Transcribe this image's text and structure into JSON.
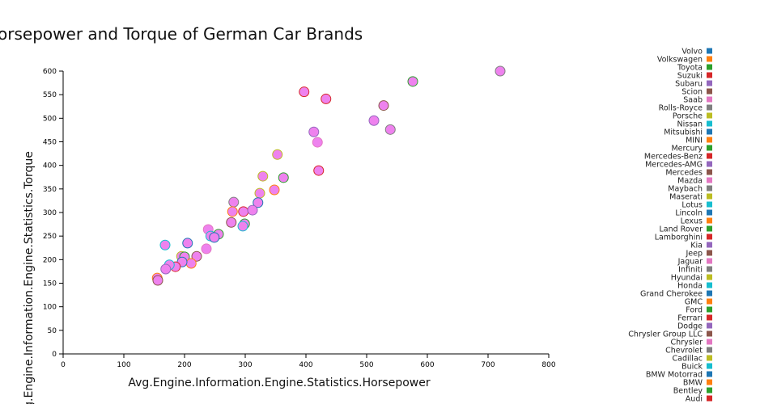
{
  "chart_data": {
    "type": "scatter",
    "title": "Horsepower and Torque of German Car Brands",
    "xlabel": "Avg.Engine.Information.Engine.Statistics.Horsepower",
    "ylabel": "Avg.Engine.Information.Engine.Statistics.Torque",
    "xlim": [
      0,
      800
    ],
    "ylim": [
      0,
      600
    ],
    "xticks": [
      0,
      100,
      200,
      300,
      400,
      500,
      600,
      700,
      800
    ],
    "yticks": [
      0,
      50,
      100,
      150,
      200,
      250,
      300,
      350,
      400,
      450,
      500,
      550,
      600
    ],
    "grid": false,
    "legend_position": "right",
    "point_fill": "#ee82ee",
    "legend": [
      {
        "name": "Volvo",
        "color": "#1f77b4"
      },
      {
        "name": "Volkswagen",
        "color": "#ff7f0e"
      },
      {
        "name": "Toyota",
        "color": "#2ca02c"
      },
      {
        "name": "Suzuki",
        "color": "#d62728"
      },
      {
        "name": "Subaru",
        "color": "#9467bd"
      },
      {
        "name": "Scion",
        "color": "#8c564b"
      },
      {
        "name": "Saab",
        "color": "#e377c2"
      },
      {
        "name": "Rolls-Royce",
        "color": "#7f7f7f"
      },
      {
        "name": "Porsche",
        "color": "#bcbd22"
      },
      {
        "name": "Nissan",
        "color": "#17becf"
      },
      {
        "name": "Mitsubishi",
        "color": "#1f77b4"
      },
      {
        "name": "MINI",
        "color": "#ff7f0e"
      },
      {
        "name": "Mercury",
        "color": "#2ca02c"
      },
      {
        "name": "Mercedes-Benz",
        "color": "#d62728"
      },
      {
        "name": "Mercedes-AMG",
        "color": "#9467bd"
      },
      {
        "name": "Mercedes",
        "color": "#8c564b"
      },
      {
        "name": "Mazda",
        "color": "#e377c2"
      },
      {
        "name": "Maybach",
        "color": "#7f7f7f"
      },
      {
        "name": "Maserati",
        "color": "#bcbd22"
      },
      {
        "name": "Lotus",
        "color": "#17becf"
      },
      {
        "name": "Lincoln",
        "color": "#1f77b4"
      },
      {
        "name": "Lexus",
        "color": "#ff7f0e"
      },
      {
        "name": "Land Rover",
        "color": "#2ca02c"
      },
      {
        "name": "Lamborghini",
        "color": "#d62728"
      },
      {
        "name": "Kia",
        "color": "#9467bd"
      },
      {
        "name": "Jeep",
        "color": "#8c564b"
      },
      {
        "name": "Jaguar",
        "color": "#e377c2"
      },
      {
        "name": "Infiniti",
        "color": "#7f7f7f"
      },
      {
        "name": "Hyundai",
        "color": "#bcbd22"
      },
      {
        "name": "Honda",
        "color": "#17becf"
      },
      {
        "name": "Grand Cherokee",
        "color": "#1f77b4"
      },
      {
        "name": "GMC",
        "color": "#ff7f0e"
      },
      {
        "name": "Ford",
        "color": "#2ca02c"
      },
      {
        "name": "Ferrari",
        "color": "#d62728"
      },
      {
        "name": "Dodge",
        "color": "#9467bd"
      },
      {
        "name": "Chrysler Group LLC",
        "color": "#8c564b"
      },
      {
        "name": "Chrysler",
        "color": "#e377c2"
      },
      {
        "name": "Chevrolet",
        "color": "#7f7f7f"
      },
      {
        "name": "Cadillac",
        "color": "#bcbd22"
      },
      {
        "name": "Buick",
        "color": "#17becf"
      },
      {
        "name": "BMW Motorrad",
        "color": "#1f77b4"
      },
      {
        "name": "BMW",
        "color": "#ff7f0e"
      },
      {
        "name": "Bentley",
        "color": "#2ca02c"
      },
      {
        "name": "Audi",
        "color": "#d62728"
      }
    ],
    "points": [
      {
        "x": 720,
        "y": 600,
        "stroke": "#7f7f7f"
      },
      {
        "x": 576,
        "y": 578,
        "stroke": "#2ca02c"
      },
      {
        "x": 528,
        "y": 527,
        "stroke": "#8c564b"
      },
      {
        "x": 397,
        "y": 556,
        "stroke": "#d62728"
      },
      {
        "x": 433,
        "y": 541,
        "stroke": "#d62728"
      },
      {
        "x": 512,
        "y": 495,
        "stroke": "#9467bd"
      },
      {
        "x": 539,
        "y": 476,
        "stroke": "#7f7f7f"
      },
      {
        "x": 413,
        "y": 471,
        "stroke": "#9467bd"
      },
      {
        "x": 419,
        "y": 449,
        "stroke": "#e377c2"
      },
      {
        "x": 421,
        "y": 389,
        "stroke": "#d62728"
      },
      {
        "x": 353,
        "y": 423,
        "stroke": "#bcbd22"
      },
      {
        "x": 329,
        "y": 377,
        "stroke": "#bcbd22"
      },
      {
        "x": 363,
        "y": 374,
        "stroke": "#2ca02c"
      },
      {
        "x": 348,
        "y": 348,
        "stroke": "#ff7f0e"
      },
      {
        "x": 324,
        "y": 341,
        "stroke": "#bcbd22"
      },
      {
        "x": 281,
        "y": 322,
        "stroke": "#7f7f7f"
      },
      {
        "x": 321,
        "y": 321,
        "stroke": "#1f77b4"
      },
      {
        "x": 279,
        "y": 302,
        "stroke": "#ff7f0e"
      },
      {
        "x": 297,
        "y": 302,
        "stroke": "#d62728"
      },
      {
        "x": 312,
        "y": 305,
        "stroke": "#9467bd"
      },
      {
        "x": 277,
        "y": 279,
        "stroke": "#8c564b"
      },
      {
        "x": 299,
        "y": 276,
        "stroke": "#2ca02c"
      },
      {
        "x": 296,
        "y": 271,
        "stroke": "#17becf"
      },
      {
        "x": 239,
        "y": 264,
        "stroke": "#e377c2"
      },
      {
        "x": 256,
        "y": 254,
        "stroke": "#2ca02c"
      },
      {
        "x": 243,
        "y": 250,
        "stroke": "#17becf"
      },
      {
        "x": 249,
        "y": 247,
        "stroke": "#1f77b4"
      },
      {
        "x": 168,
        "y": 231,
        "stroke": "#17becf"
      },
      {
        "x": 205,
        "y": 235,
        "stroke": "#1f77b4"
      },
      {
        "x": 236,
        "y": 223,
        "stroke": "#e377c2"
      },
      {
        "x": 220,
        "y": 207,
        "stroke": "#8c564b"
      },
      {
        "x": 195,
        "y": 207,
        "stroke": "#bcbd22"
      },
      {
        "x": 200,
        "y": 206,
        "stroke": "#2ca02c"
      },
      {
        "x": 211,
        "y": 192,
        "stroke": "#ff7f0e"
      },
      {
        "x": 196,
        "y": 195,
        "stroke": "#1f77b4"
      },
      {
        "x": 185,
        "y": 185,
        "stroke": "#d62728"
      },
      {
        "x": 175,
        "y": 189,
        "stroke": "#17becf"
      },
      {
        "x": 169,
        "y": 180,
        "stroke": "#9467bd"
      },
      {
        "x": 155,
        "y": 161,
        "stroke": "#ff7f0e"
      },
      {
        "x": 156,
        "y": 156,
        "stroke": "#8c564b"
      }
    ]
  }
}
